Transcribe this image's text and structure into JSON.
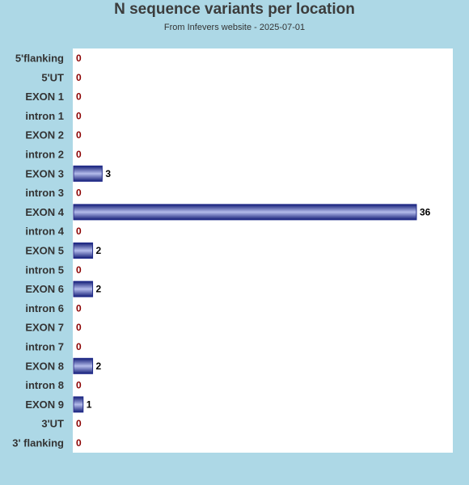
{
  "chart_data": {
    "type": "bar",
    "orientation": "horizontal",
    "title": "N sequence variants per location",
    "subtitle": "From Infevers website - 2025-07-01",
    "categories": [
      "5'flanking",
      "5'UT",
      "EXON 1",
      "intron 1",
      "EXON 2",
      "intron 2",
      "EXON 3",
      "intron 3",
      "EXON 4",
      "intron 4",
      "EXON 5",
      "intron 5",
      "EXON 6",
      "intron 6",
      "EXON 7",
      "intron 7",
      "EXON 8",
      "intron 8",
      "EXON 9",
      "3'UT",
      "3' flanking"
    ],
    "values": [
      0,
      0,
      0,
      0,
      0,
      0,
      3,
      0,
      36,
      0,
      2,
      0,
      2,
      0,
      0,
      0,
      2,
      0,
      1,
      0,
      0
    ],
    "xlim": [
      0,
      40
    ],
    "grid": false,
    "colors": {
      "bar": "#1f2a8a",
      "zero_label": "#8b0000",
      "value_label": "#000000",
      "plot_bg": "#ffffff",
      "page_bg": "#add8e6"
    }
  }
}
